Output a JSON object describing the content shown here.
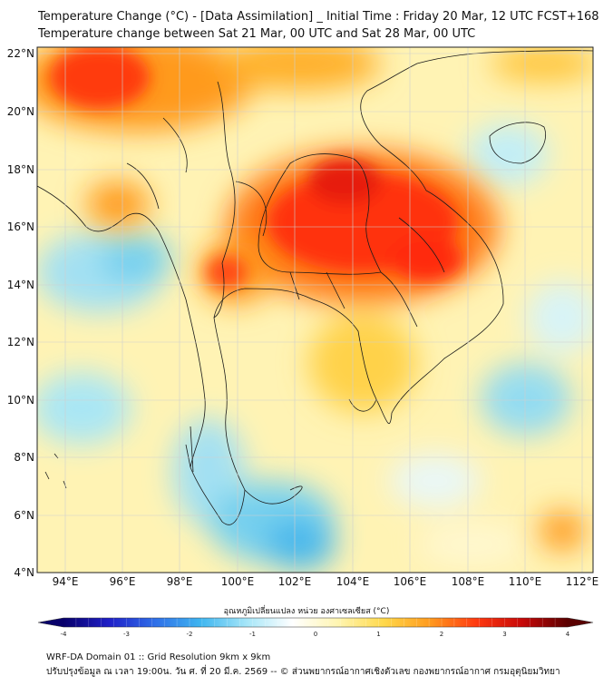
{
  "title_line1": "Temperature Change (°C) - [Data Assimilation] _ Initial Time : Friday 20 Mar, 12 UTC FCST+168",
  "title_line2": "Temperature change between Sat 21 Mar, 00 UTC and Sat 28 Mar, 00 UTC",
  "lat_labels": [
    "22°N",
    "20°N",
    "18°N",
    "16°N",
    "14°N",
    "12°N",
    "10°N",
    "8°N",
    "6°N",
    "4°N"
  ],
  "lon_labels": [
    "94°E",
    "96°E",
    "98°E",
    "100°E",
    "102°E",
    "104°E",
    "106°E",
    "108°E",
    "110°E",
    "112°E"
  ],
  "colorbar": {
    "title": "อุณหภูมิเปลี่ยนแปลง หน่วย องศาเซลเซียส (°C)",
    "ticks": [
      "-4",
      "-3",
      "-2",
      "-1",
      "0",
      "1",
      "2",
      "3",
      "4"
    ],
    "colors": [
      "#08006b",
      "#1f1fc8",
      "#2f6fe8",
      "#3fb6f0",
      "#a6e6f8",
      "#ffffff",
      "#fff5b0",
      "#ffd84a",
      "#ff9a1e",
      "#ff3a10",
      "#c80808",
      "#5a0000"
    ]
  },
  "footer_line1": "WRF-DA Domain 01 :: Grid Resolution 9km x 9km",
  "footer_line2": "ปรับปรุงข้อมูล ณ เวลา 19:00น. วัน ศ. ที่ 20 มี.ค. 2569 -- © ส่วนพยากรณ์อากาศเชิงตัวเลข กองพยากรณ์อากาศ กรมอุตุนิยมวิทยา"
}
